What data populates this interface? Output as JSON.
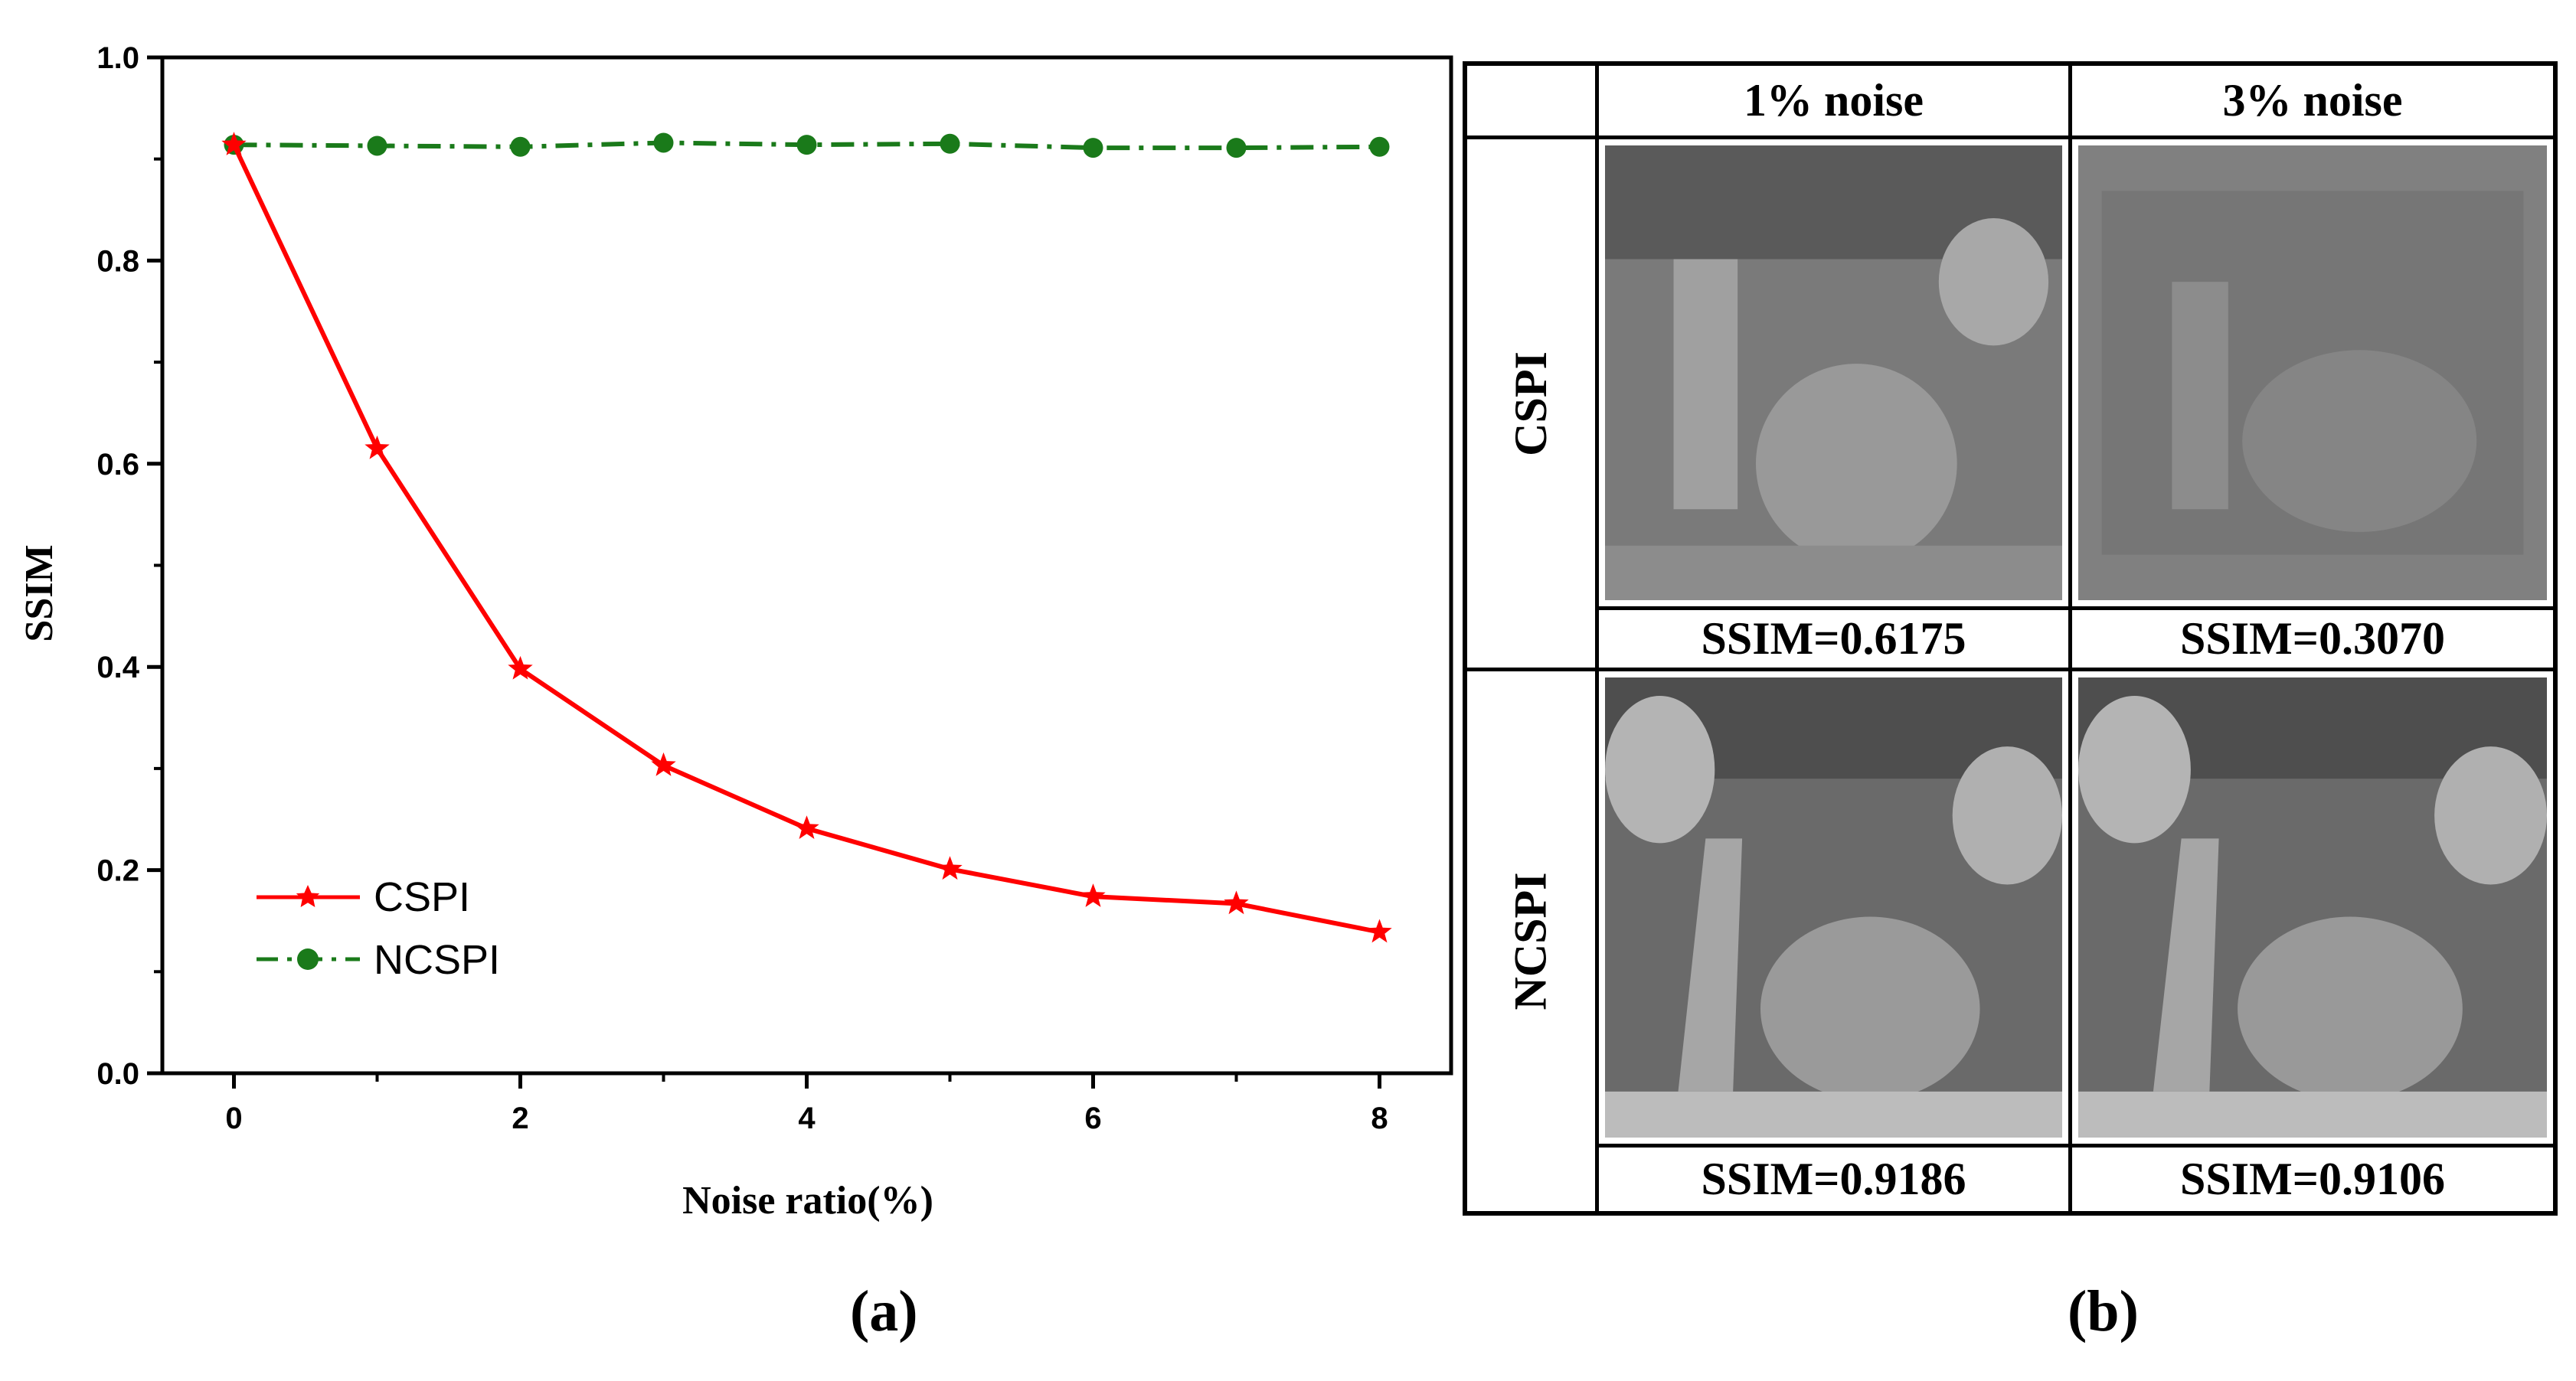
{
  "chart_data": {
    "type": "line",
    "panel_caption": "(a)",
    "xlabel": "Noise ratio(%)",
    "ylabel": "SSIM",
    "xlim": [
      -0.5,
      8.5
    ],
    "ylim": [
      0.0,
      1.0
    ],
    "x_ticks": [
      0,
      2,
      4,
      6,
      8
    ],
    "y_ticks": [
      "0.0",
      "0.2",
      "0.4",
      "0.6",
      "0.8",
      "1.0"
    ],
    "x": [
      0,
      1,
      2,
      3,
      4,
      5,
      6,
      7,
      8
    ],
    "series": [
      {
        "name": "CSPI",
        "color": "#ff0000",
        "marker": "star",
        "style": "solid",
        "values": [
          0.914,
          0.615,
          0.398,
          0.303,
          0.241,
          0.201,
          0.174,
          0.167,
          0.139
        ]
      },
      {
        "name": "NCSPI",
        "color": "#1a7a1a",
        "marker": "circle",
        "style": "dashdot",
        "values": [
          0.914,
          0.913,
          0.912,
          0.916,
          0.914,
          0.915,
          0.911,
          0.911,
          0.912
        ]
      }
    ],
    "legend_position": "bottom-left"
  },
  "comparison": {
    "panel_caption": "(b)",
    "columns": [
      "1% noise",
      "3% noise"
    ],
    "rows": [
      {
        "label": "CSPI",
        "ssim": [
          "SSIM=0.6175",
          "SSIM=0.3070"
        ]
      },
      {
        "label": "NCSPI",
        "ssim": [
          "SSIM=0.9186",
          "SSIM=0.9106"
        ]
      }
    ]
  }
}
